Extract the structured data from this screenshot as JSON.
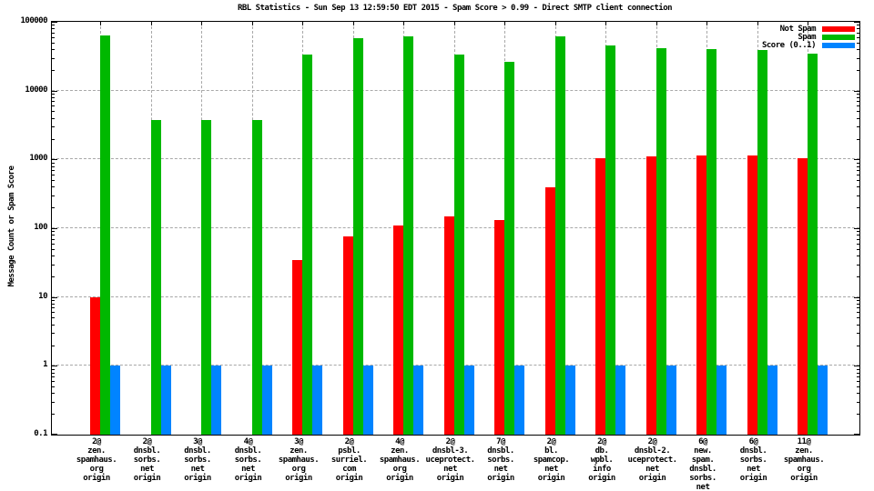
{
  "title": "RBL Statistics - Sun Sep 13 12:59:50 EDT 2015 - Spam Score > 0.99 - Direct SMTP client connection",
  "chart_data": {
    "type": "bar",
    "title": "RBL Statistics - Sun Sep 13 12:59:50 EDT 2015 - Spam Score > 0.99 - Direct SMTP client connection",
    "ylabel": "Message Count or Spam Score",
    "xlabel": "",
    "yscale": "log",
    "ylim": [
      0.1,
      100000
    ],
    "ytick_labels": [
      "100000",
      "10000",
      "1000",
      "100",
      "10",
      "1",
      "0.1"
    ],
    "grid": true,
    "legend_position": "top-right",
    "categories": [
      [
        "2@",
        "zen.",
        "spamhaus.",
        "org",
        "origin"
      ],
      [
        "2@",
        "dnsbl.",
        "sorbs.",
        "net",
        "origin"
      ],
      [
        "3@",
        "dnsbl.",
        "sorbs.",
        "net",
        "origin"
      ],
      [
        "4@",
        "dnsbl.",
        "sorbs.",
        "net",
        "origin"
      ],
      [
        "3@",
        "zen.",
        "spamhaus.",
        "org",
        "origin"
      ],
      [
        "2@",
        "psbl.",
        "surriel.",
        "com",
        "origin"
      ],
      [
        "4@",
        "zen.",
        "spamhaus.",
        "org",
        "origin"
      ],
      [
        "2@",
        "dnsbl-3.",
        "uceprotect.",
        "net",
        "origin"
      ],
      [
        "7@",
        "dnsbl.",
        "sorbs.",
        "net",
        "origin"
      ],
      [
        "2@",
        "bl.",
        "spamcop.",
        "net",
        "origin"
      ],
      [
        "2@",
        "db.",
        "wpbl.",
        "info",
        "origin"
      ],
      [
        "2@",
        "dnsbl-2.",
        "uceprotect.",
        "net",
        "origin"
      ],
      [
        "6@",
        "new.",
        "spam.",
        "dnsbl.",
        "sorbs.",
        "net",
        "origin"
      ],
      [
        "6@",
        "dnsbl.",
        "sorbs.",
        "net",
        "origin"
      ],
      [
        "11@",
        "zen.",
        "spamhaus.",
        "org",
        "origin"
      ]
    ],
    "series": [
      {
        "name": "Not Spam",
        "color": "#ff0000",
        "values": [
          10,
          null,
          null,
          null,
          35,
          75,
          110,
          150,
          130,
          390,
          1050,
          1100,
          1150,
          1150,
          1050
        ]
      },
      {
        "name": "Spam",
        "color": "#00b800",
        "values": [
          64000,
          3700,
          3700,
          3700,
          33000,
          58000,
          62000,
          33000,
          26000,
          62000,
          45000,
          42000,
          40000,
          38500,
          35000
        ]
      },
      {
        "name": "Score (0..1)",
        "color": "#0084ff",
        "values": [
          1,
          1,
          1,
          1,
          1,
          1,
          1,
          1,
          1,
          1,
          1,
          1,
          1,
          1,
          1
        ]
      }
    ]
  }
}
